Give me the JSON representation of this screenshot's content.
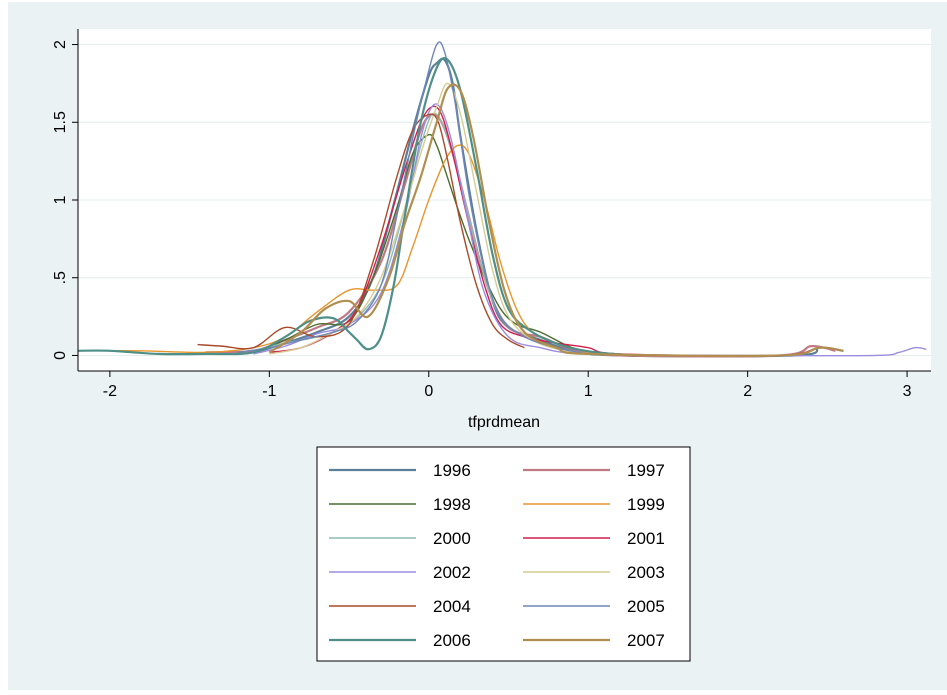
{
  "chart_data": {
    "type": "line",
    "title": "",
    "xlabel": "tfprdmean",
    "ylabel": "",
    "xlim": [
      -2.2,
      3.15
    ],
    "ylim": [
      -0.1,
      2.1
    ],
    "xticks": [
      -2,
      -1,
      0,
      1,
      2,
      3
    ],
    "xtick_labels": [
      "-2",
      "-1",
      "0",
      "1",
      "2",
      "3"
    ],
    "yticks": [
      0,
      0.5,
      1,
      1.5,
      2
    ],
    "ytick_labels": [
      "0",
      ".5",
      "1",
      "1.5",
      "2"
    ],
    "grid": true,
    "legend_position": "bottom",
    "plot_background": "#ffffff",
    "outer_background": "#eaf2f3",
    "series": [
      {
        "name": "1996",
        "color": "#5a7f97",
        "width": 2.2,
        "x": [
          -1.3,
          -1.1,
          -0.9,
          -0.7,
          -0.5,
          -0.35,
          -0.2,
          -0.1,
          0,
          0.05,
          0.1,
          0.15,
          0.2,
          0.3,
          0.4,
          0.5,
          0.7,
          0.9,
          1.2,
          2.3,
          2.45,
          2.6
        ],
        "y": [
          0.01,
          0.02,
          0.08,
          0.15,
          0.25,
          0.5,
          1.05,
          1.45,
          1.8,
          1.88,
          1.9,
          1.75,
          1.4,
          0.8,
          0.35,
          0.18,
          0.1,
          0.03,
          0,
          0,
          0.05,
          0.03
        ]
      },
      {
        "name": "1997",
        "color": "#c07a84",
        "width": 2.2,
        "x": [
          -1.4,
          -1.1,
          -0.9,
          -0.7,
          -0.5,
          -0.3,
          -0.15,
          -0.05,
          0.02,
          0.08,
          0.15,
          0.25,
          0.35,
          0.45,
          0.55,
          0.7,
          0.9,
          1.2,
          2.2,
          2.4,
          2.55
        ],
        "y": [
          0.02,
          0.03,
          0.1,
          0.18,
          0.28,
          0.6,
          1.1,
          1.45,
          1.55,
          1.5,
          1.3,
          0.9,
          0.5,
          0.25,
          0.15,
          0.12,
          0.04,
          0,
          0,
          0.06,
          0.03
        ]
      },
      {
        "name": "1998",
        "color": "#4a6e2e",
        "width": 1.4,
        "x": [
          -1.1,
          -0.9,
          -0.7,
          -0.5,
          -0.35,
          -0.2,
          -0.1,
          0,
          0.05,
          0.1,
          0.18,
          0.25,
          0.35,
          0.45,
          0.55,
          0.7,
          0.9,
          1.1
        ],
        "y": [
          0.02,
          0.1,
          0.2,
          0.22,
          0.5,
          0.95,
          1.3,
          1.42,
          1.35,
          1.2,
          0.95,
          0.75,
          0.5,
          0.3,
          0.2,
          0.15,
          0.05,
          0.01
        ]
      },
      {
        "name": "1999",
        "color": "#e8952c",
        "width": 1.4,
        "x": [
          -2.1,
          -1.8,
          -1.4,
          -1.1,
          -0.9,
          -0.7,
          -0.5,
          -0.35,
          -0.2,
          -0.1,
          0,
          0.1,
          0.18,
          0.25,
          0.35,
          0.45,
          0.55,
          0.65,
          0.8,
          1.0
        ],
        "y": [
          0.03,
          0.03,
          0.02,
          0.05,
          0.12,
          0.28,
          0.42,
          0.42,
          0.45,
          0.7,
          1.0,
          1.25,
          1.35,
          1.3,
          1.0,
          0.6,
          0.3,
          0.15,
          0.08,
          0.02
        ]
      },
      {
        "name": "2000",
        "color": "#8fbcb4",
        "width": 1.4,
        "x": [
          -1.1,
          -0.9,
          -0.7,
          -0.5,
          -0.3,
          -0.15,
          -0.05,
          0.02,
          0.08,
          0.15,
          0.25,
          0.35,
          0.45,
          0.6,
          0.8,
          1.0
        ],
        "y": [
          0.03,
          0.08,
          0.12,
          0.2,
          0.45,
          0.95,
          1.35,
          1.55,
          1.5,
          1.3,
          0.9,
          0.5,
          0.25,
          0.12,
          0.05,
          0.01
        ]
      },
      {
        "name": "2001",
        "color": "#d01e4e",
        "width": 1.4,
        "x": [
          -1.0,
          -0.8,
          -0.6,
          -0.45,
          -0.3,
          -0.15,
          -0.05,
          0.02,
          0.08,
          0.15,
          0.25,
          0.35,
          0.45,
          0.6,
          0.8,
          1.0,
          1.2,
          2.2,
          2.45,
          2.6
        ],
        "y": [
          0.02,
          0.05,
          0.15,
          0.3,
          0.7,
          1.2,
          1.5,
          1.6,
          1.55,
          1.3,
          0.85,
          0.45,
          0.2,
          0.12,
          0.08,
          0.05,
          0.01,
          0,
          0.05,
          0.03
        ]
      },
      {
        "name": "2002",
        "color": "#9c8ce0",
        "width": 1.4,
        "x": [
          -1.1,
          -0.9,
          -0.7,
          -0.5,
          -0.3,
          -0.15,
          -0.05,
          0.02,
          0.08,
          0.15,
          0.25,
          0.35,
          0.5,
          0.7,
          1.0,
          2.0,
          2.8,
          2.95,
          3.05,
          3.12
        ],
        "y": [
          0.01,
          0.06,
          0.14,
          0.2,
          0.4,
          0.9,
          1.4,
          1.6,
          1.58,
          1.35,
          0.85,
          0.4,
          0.12,
          0.05,
          0.01,
          0,
          0,
          0.02,
          0.05,
          0.04
        ]
      },
      {
        "name": "2003",
        "color": "#d4cc92",
        "width": 1.4,
        "x": [
          -1.0,
          -0.8,
          -0.6,
          -0.45,
          -0.3,
          -0.15,
          -0.05,
          0.05,
          0.12,
          0.2,
          0.3,
          0.4,
          0.5,
          0.65,
          0.85,
          1.05
        ],
        "y": [
          0.01,
          0.05,
          0.15,
          0.25,
          0.5,
          0.95,
          1.3,
          1.6,
          1.75,
          1.55,
          1.05,
          0.55,
          0.25,
          0.1,
          0.03,
          0.01
        ]
      },
      {
        "name": "2004",
        "color": "#a84a2a",
        "width": 1.4,
        "x": [
          -1.45,
          -1.3,
          -1.1,
          -0.9,
          -0.7,
          -0.5,
          -0.35,
          -0.2,
          -0.1,
          0,
          0.06,
          0.12,
          0.2,
          0.3,
          0.4,
          0.5,
          0.6
        ],
        "y": [
          0.07,
          0.06,
          0.05,
          0.18,
          0.12,
          0.2,
          0.6,
          1.15,
          1.45,
          1.55,
          1.5,
          1.25,
          0.85,
          0.45,
          0.2,
          0.1,
          0.05
        ]
      },
      {
        "name": "2005",
        "color": "#6e86b8",
        "width": 1.4,
        "x": [
          -1.2,
          -1.0,
          -0.8,
          -0.6,
          -0.45,
          -0.3,
          -0.2,
          -0.1,
          -0.02,
          0.05,
          0.1,
          0.17,
          0.25,
          0.35,
          0.45,
          0.6,
          0.8,
          1.0
        ],
        "y": [
          0.02,
          0.05,
          0.1,
          0.15,
          0.22,
          0.45,
          0.9,
          1.4,
          1.75,
          2.0,
          1.95,
          1.6,
          1.05,
          0.55,
          0.25,
          0.12,
          0.05,
          0.01
        ]
      },
      {
        "name": "2006",
        "color": "#4e9088",
        "width": 2.2,
        "x": [
          -2.2,
          -2.0,
          -1.7,
          -1.4,
          -1.1,
          -0.9,
          -0.75,
          -0.6,
          -0.5,
          -0.45,
          -0.38,
          -0.3,
          -0.22,
          -0.15,
          -0.05,
          0.05,
          0.12,
          0.2,
          0.3,
          0.4,
          0.5,
          0.65,
          0.85,
          1.05,
          1.3
        ],
        "y": [
          0.03,
          0.03,
          0.01,
          0.01,
          0.02,
          0.12,
          0.22,
          0.24,
          0.15,
          0.1,
          0.04,
          0.12,
          0.45,
          0.9,
          1.5,
          1.85,
          1.9,
          1.7,
          1.2,
          0.65,
          0.3,
          0.15,
          0.06,
          0.02,
          0
        ]
      },
      {
        "name": "2007",
        "color": "#b08e50",
        "width": 2.2,
        "x": [
          -1.0,
          -0.8,
          -0.65,
          -0.5,
          -0.38,
          -0.25,
          -0.15,
          -0.05,
          0.05,
          0.12,
          0.2,
          0.28,
          0.38,
          0.48,
          0.6,
          0.8,
          1.0,
          2.2,
          2.45,
          2.6
        ],
        "y": [
          0.02,
          0.15,
          0.3,
          0.35,
          0.25,
          0.5,
          0.85,
          1.15,
          1.5,
          1.72,
          1.7,
          1.4,
          0.85,
          0.4,
          0.15,
          0.05,
          0.01,
          0,
          0.05,
          0.03
        ]
      }
    ]
  }
}
